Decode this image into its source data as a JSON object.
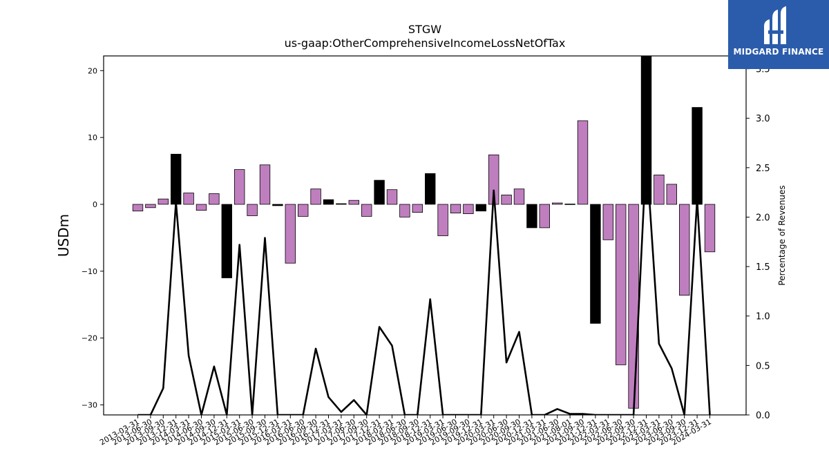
{
  "chart_data": {
    "type": "bar",
    "title": "STGW",
    "subtitle": "us-gaap:OtherComprehensiveIncomeLossNetOfTax",
    "ylabel": "USDm",
    "y2label": "Percentage of Revenues",
    "ylim": [
      -31.5,
      22.2
    ],
    "y2lim": [
      0.0,
      3.63
    ],
    "yticks": [
      -30,
      -20,
      -10,
      0,
      10,
      20
    ],
    "y2ticks": [
      0.0,
      0.5,
      1.0,
      1.5,
      2.0,
      2.5,
      3.0,
      3.5
    ],
    "grid": false,
    "categories": [
      "2013-03-31",
      "2013-06-30",
      "2013-09-30",
      "2013-12-31",
      "2014-03-31",
      "2014-06-30",
      "2014-09-30",
      "2014-12-31",
      "2015-03-31",
      "2015-06-30",
      "2015-09-30",
      "2015-12-31",
      "2016-03-31",
      "2016-06-30",
      "2016-09-30",
      "2016-12-31",
      "2017-03-31",
      "2017-06-30",
      "2017-09-30",
      "2017-12-31",
      "2018-03-31",
      "2018-06-30",
      "2018-09-30",
      "2018-12-31",
      "2019-03-31",
      "2019-06-30",
      "2019-09-30",
      "2019-12-31",
      "2020-03-31",
      "2020-06-30",
      "2020-09-30",
      "2020-12-31",
      "2021-03-31",
      "2021-06-30",
      "2021-08-01",
      "2021-09-30",
      "2021-12-31",
      "2022-03-31",
      "2022-06-30",
      "2022-09-30",
      "2022-12-31",
      "2023-03-31",
      "2023-06-30",
      "2023-09-30",
      "2023-12-31",
      "2024-03-31"
    ],
    "series": [
      {
        "values": [
          -1.0,
          -0.5,
          0.8,
          7.5,
          1.7,
          -0.9,
          1.6,
          -11.0,
          5.2,
          -1.7,
          5.9,
          -0.2,
          -8.8,
          -1.8,
          2.3,
          0.7,
          0.1,
          0.6,
          -1.8,
          3.6,
          2.2,
          -1.9,
          -1.2,
          4.6,
          -4.7,
          -1.3,
          -1.4,
          -1.0,
          7.4,
          1.4,
          2.3,
          -3.5,
          -3.5,
          0.2,
          0.05,
          12.5,
          -17.8,
          -5.3,
          -24.0,
          -30.5,
          22.5,
          4.4,
          3.0,
          -13.6,
          14.5,
          -7.1
        ],
        "colors": [
          "#bf7fbf",
          "#bf7fbf",
          "#bf7fbf",
          "#000000",
          "#bf7fbf",
          "#bf7fbf",
          "#bf7fbf",
          "#000000",
          "#bf7fbf",
          "#bf7fbf",
          "#bf7fbf",
          "#000000",
          "#bf7fbf",
          "#bf7fbf",
          "#bf7fbf",
          "#000000",
          "#000000",
          "#bf7fbf",
          "#bf7fbf",
          "#000000",
          "#bf7fbf",
          "#bf7fbf",
          "#bf7fbf",
          "#000000",
          "#bf7fbf",
          "#bf7fbf",
          "#bf7fbf",
          "#000000",
          "#bf7fbf",
          "#bf7fbf",
          "#bf7fbf",
          "#000000",
          "#bf7fbf",
          "#bf7fbf",
          "#bf7fbf",
          "#bf7fbf",
          "#000000",
          "#bf7fbf",
          "#bf7fbf",
          "#bf7fbf",
          "#000000",
          "#bf7fbf",
          "#bf7fbf",
          "#bf7fbf",
          "#000000",
          "#bf7fbf"
        ]
      },
      {
        "type": "line",
        "axis": "right",
        "color": "#000000",
        "values": [
          0.0,
          0.0,
          0.27,
          2.15,
          0.6,
          0.0,
          0.49,
          0.0,
          1.72,
          0.0,
          1.79,
          0.0,
          0.0,
          0.0,
          0.67,
          0.18,
          0.03,
          0.15,
          0.0,
          0.89,
          0.7,
          0.0,
          0.0,
          1.17,
          0.0,
          0.0,
          0.0,
          0.0,
          2.27,
          0.53,
          0.84,
          0.0,
          0.0,
          0.06,
          0.01,
          0.01,
          0.0,
          0.0,
          0.0,
          0.0,
          2.65,
          0.72,
          0.47,
          0.0,
          2.18,
          0.0
        ]
      }
    ]
  },
  "logo": {
    "text": "MIDGARD FINANCE",
    "background": "#2b5cab"
  }
}
